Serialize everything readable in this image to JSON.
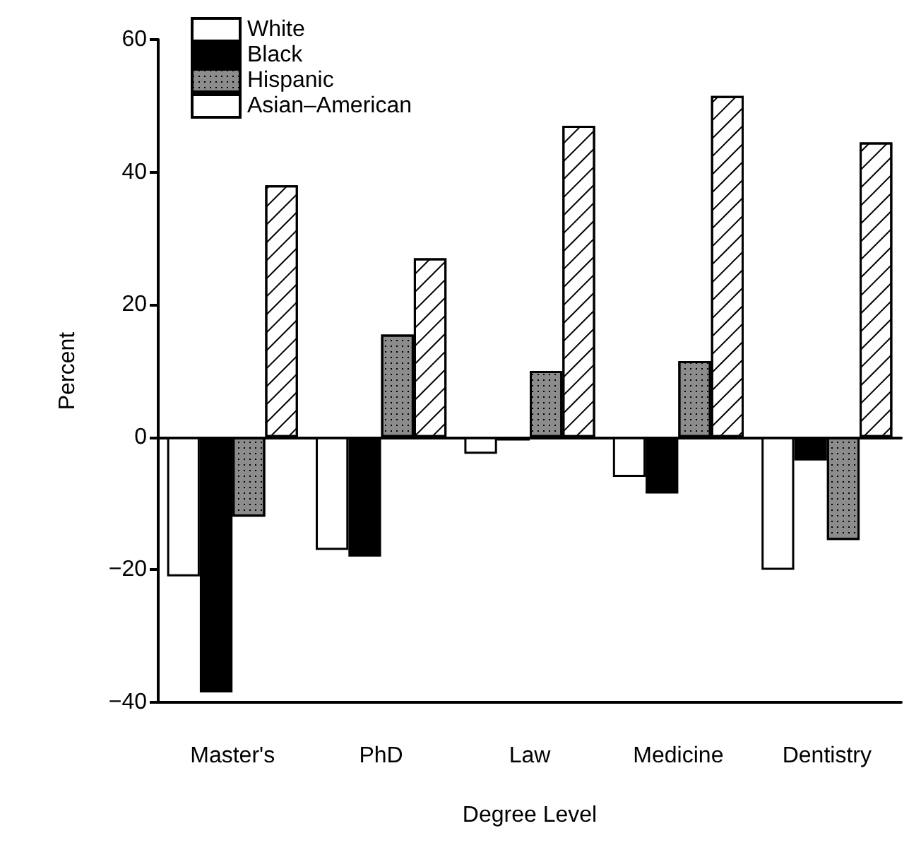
{
  "chart_data": {
    "type": "bar",
    "xlabel": "Degree Level",
    "ylabel": "Percent",
    "categories": [
      "Master's",
      "PhD",
      "Law",
      "Medicine",
      "Dentistry"
    ],
    "series": [
      {
        "name": "White",
        "color": "#ffffff",
        "values": [
          -21,
          -17,
          -2.5,
          -6,
          -20
        ]
      },
      {
        "name": "Black",
        "color": "#000000",
        "values": [
          -38.5,
          -18,
          -0.5,
          -8.5,
          -3.5
        ]
      },
      {
        "name": "Hispanic",
        "color": "#8c8c8c",
        "values": [
          -12,
          15.5,
          10,
          11.5,
          -15.5
        ]
      },
      {
        "name": "Asian–American",
        "color": "#ffffff",
        "values": [
          38,
          27,
          47,
          51.5,
          44.5
        ]
      }
    ],
    "ylim": [
      -40,
      60
    ],
    "yticks": [
      -40,
      -20,
      0,
      20,
      40,
      60
    ],
    "legend": "top left"
  }
}
